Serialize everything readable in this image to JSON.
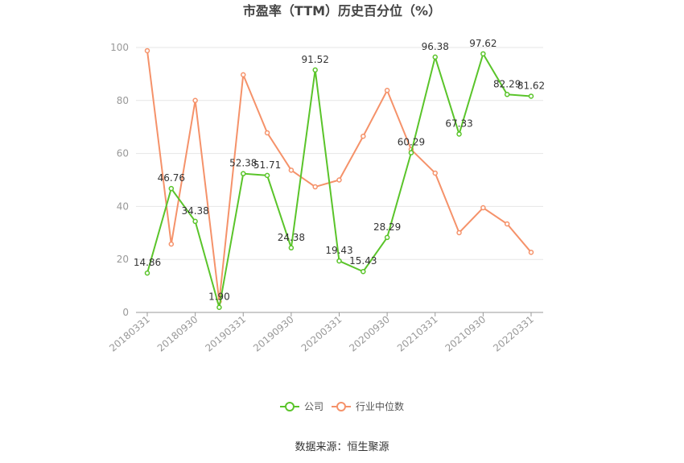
{
  "chart_data": {
    "type": "line",
    "title": "市盈率（TTM）历史百分位（%）",
    "x": [
      "20180331",
      "20180630",
      "20180930",
      "20181231",
      "20190331",
      "20190630",
      "20190930",
      "20191231",
      "20200331",
      "20200630",
      "20200930",
      "20201231",
      "20210331",
      "20210630",
      "20210930",
      "20211231",
      "20220331"
    ],
    "x_tick_labels": [
      "20180331",
      "20180930",
      "20190331",
      "20190930",
      "20200331",
      "20200930",
      "20210331",
      "20210930",
      "20220331"
    ],
    "ylim": [
      0,
      100
    ],
    "y_ticks": [
      0,
      20,
      40,
      60,
      80,
      100
    ],
    "grid": true,
    "legend_position": "bottom",
    "series": [
      {
        "name": "公司",
        "color": "#5ac42a",
        "values": [
          14.86,
          46.76,
          34.38,
          1.9,
          52.38,
          51.71,
          24.38,
          91.52,
          19.43,
          15.43,
          28.29,
          60.29,
          96.38,
          67.33,
          97.62,
          82.29,
          81.62
        ],
        "labels": [
          "14.86",
          "46.76",
          "34.38",
          "1.90",
          "52.38",
          "51.71",
          "24.38",
          "91.52",
          "19.43",
          "15.43",
          "28.29",
          "60.29",
          "96.38",
          "67.33",
          "97.62",
          "82.29",
          "81.62"
        ]
      },
      {
        "name": "行业中位数",
        "color": "#f5926a",
        "values": [
          98.8,
          25.8,
          80.0,
          4.2,
          89.7,
          67.8,
          53.7,
          47.4,
          50.0,
          66.5,
          83.8,
          61.5,
          52.6,
          30.1,
          39.5,
          33.4,
          22.7
        ]
      }
    ]
  },
  "source": "数据来源：恒生聚源"
}
